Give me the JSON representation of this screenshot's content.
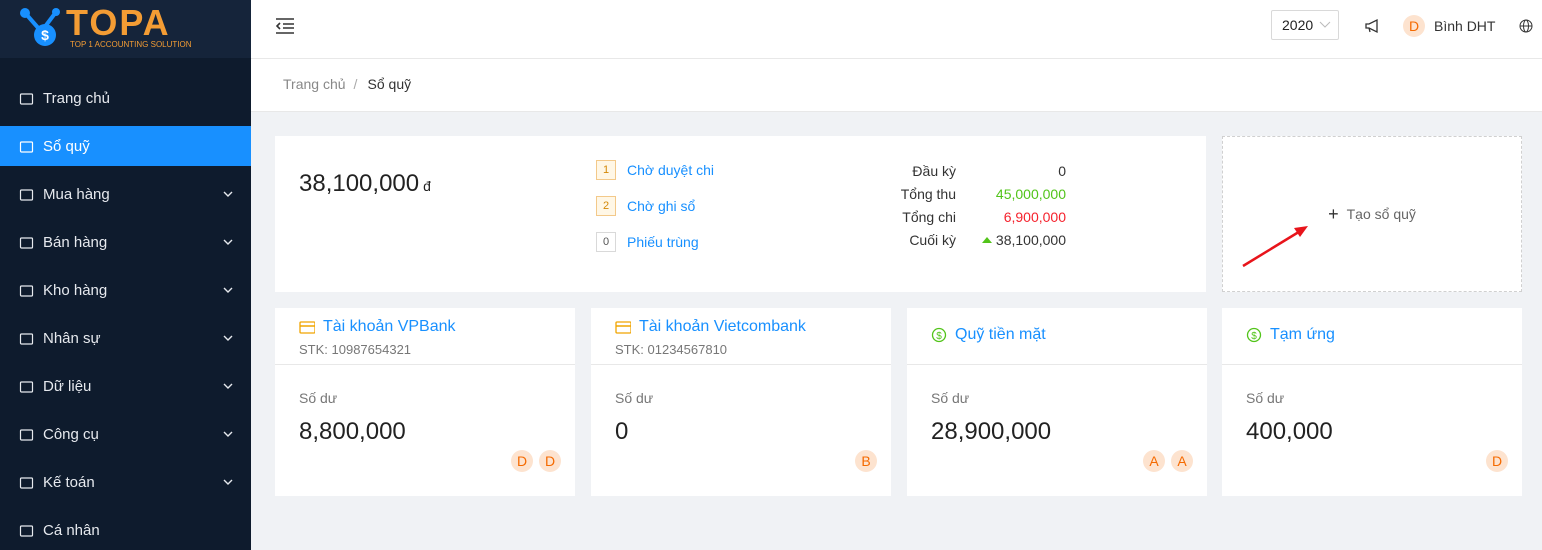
{
  "logo": {
    "title": "TOPA",
    "subtitle": "TOP 1 ACCOUNTING SOLUTION"
  },
  "header": {
    "year": "2020",
    "user_initial": "D",
    "user_name": "Bình DHT"
  },
  "sidebar": {
    "active_index": 1,
    "items": [
      {
        "label": "Trang chủ",
        "has_submenu": false
      },
      {
        "label": "Sổ quỹ",
        "has_submenu": false
      },
      {
        "label": "Mua hàng",
        "has_submenu": true
      },
      {
        "label": "Bán hàng",
        "has_submenu": true
      },
      {
        "label": "Kho hàng",
        "has_submenu": true
      },
      {
        "label": "Nhân sự",
        "has_submenu": true
      },
      {
        "label": "Dữ liệu",
        "has_submenu": true
      },
      {
        "label": "Công cụ",
        "has_submenu": true
      },
      {
        "label": "Kế toán",
        "has_submenu": true
      },
      {
        "label": "Cá nhân",
        "has_submenu": false
      }
    ]
  },
  "breadcrumb": [
    "Trang chủ",
    "Sổ quỹ"
  ],
  "summary": {
    "total": "38,100,000",
    "currency": "đ",
    "statuses": [
      {
        "count": "1",
        "label": "Chờ duyệt chi"
      },
      {
        "count": "2",
        "label": "Chờ ghi sổ"
      },
      {
        "count": "0",
        "label": "Phiếu trùng"
      }
    ],
    "balances": [
      {
        "label": "Đầu kỳ",
        "value": "0",
        "color": "#333333"
      },
      {
        "label": "Tổng thu",
        "value": "45,000,000",
        "color": "#52c41a"
      },
      {
        "label": "Tổng chi",
        "value": "6,900,000",
        "color": "#f5222d"
      },
      {
        "label": "Cuối kỳ",
        "value": "38,100,000",
        "color": "#333333",
        "trend": "up"
      }
    ]
  },
  "create_button": "Tạo sổ quỹ",
  "accounts": [
    {
      "icon": "card",
      "name": "Tài khoản VPBank",
      "account_number": "STK: 10987654321",
      "balance_label": "Số dư",
      "balance": "8,800,000",
      "users": [
        "D",
        "D"
      ]
    },
    {
      "icon": "card",
      "name": "Tài khoản Vietcombank",
      "account_number": "STK: 01234567810",
      "balance_label": "Số dư",
      "balance": "0",
      "users": [
        "B"
      ]
    },
    {
      "icon": "cash",
      "name": "Quỹ tiền mặt",
      "balance_label": "Số dư",
      "balance": "28,900,000",
      "users": [
        "A",
        "A"
      ]
    },
    {
      "icon": "cash",
      "name": "Tạm ứng",
      "balance_label": "Số dư",
      "balance": "400,000",
      "users": [
        "D"
      ]
    }
  ]
}
